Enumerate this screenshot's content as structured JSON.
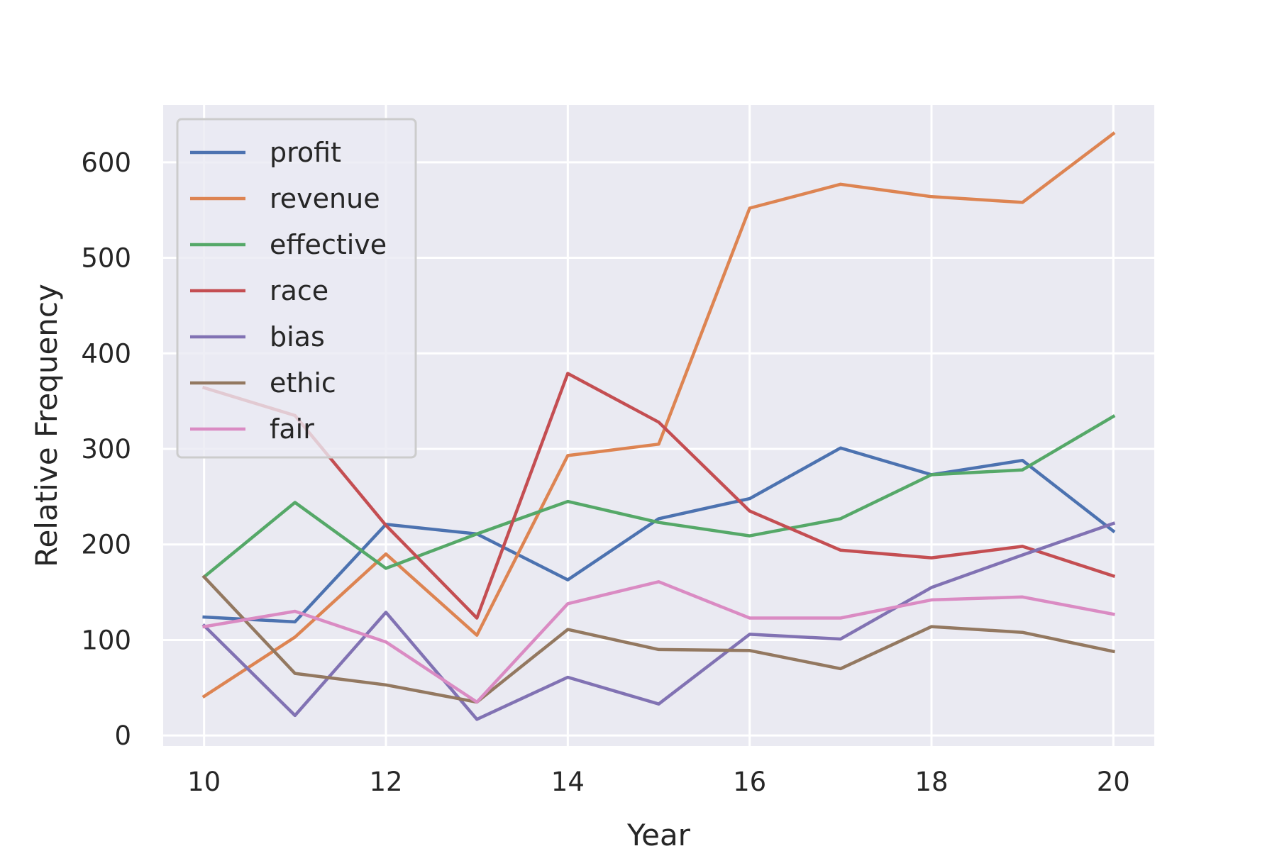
{
  "chart_data": {
    "type": "line",
    "xlabel": "Year",
    "ylabel": "Relative Frequency",
    "x": [
      10,
      11,
      12,
      13,
      14,
      15,
      16,
      17,
      18,
      19,
      20
    ],
    "xticks": [
      10,
      12,
      14,
      16,
      18,
      20
    ],
    "yticks": [
      0,
      100,
      200,
      300,
      400,
      500,
      600
    ],
    "xlim": [
      9.55,
      20.45
    ],
    "ylim": [
      -11,
      660
    ],
    "grid": true,
    "legend_position": "top-left",
    "background_color": "#eaeaf2",
    "series": [
      {
        "name": "profit",
        "color": "#4c72b0",
        "values": [
          124,
          119,
          221,
          211,
          163,
          227,
          248,
          301,
          273,
          288,
          214
        ]
      },
      {
        "name": "revenue",
        "color": "#dd8452",
        "values": [
          41,
          103,
          190,
          105,
          293,
          305,
          552,
          577,
          564,
          558,
          630
        ]
      },
      {
        "name": "effective",
        "color": "#55a868",
        "values": [
          166,
          244,
          175,
          211,
          245,
          223,
          209,
          227,
          273,
          278,
          334
        ]
      },
      {
        "name": "race",
        "color": "#c44e52",
        "values": [
          364,
          335,
          220,
          123,
          379,
          328,
          235,
          194,
          186,
          198,
          167
        ]
      },
      {
        "name": "bias",
        "color": "#8172b3",
        "values": [
          115,
          21,
          129,
          17,
          61,
          33,
          106,
          101,
          155,
          189,
          222
        ]
      },
      {
        "name": "ethic",
        "color": "#937860",
        "values": [
          166,
          65,
          53,
          35,
          111,
          90,
          89,
          70,
          114,
          108,
          88
        ]
      },
      {
        "name": "fair",
        "color": "#da8bc3",
        "values": [
          114,
          130,
          98,
          35,
          138,
          161,
          123,
          123,
          142,
          145,
          127
        ]
      }
    ]
  }
}
